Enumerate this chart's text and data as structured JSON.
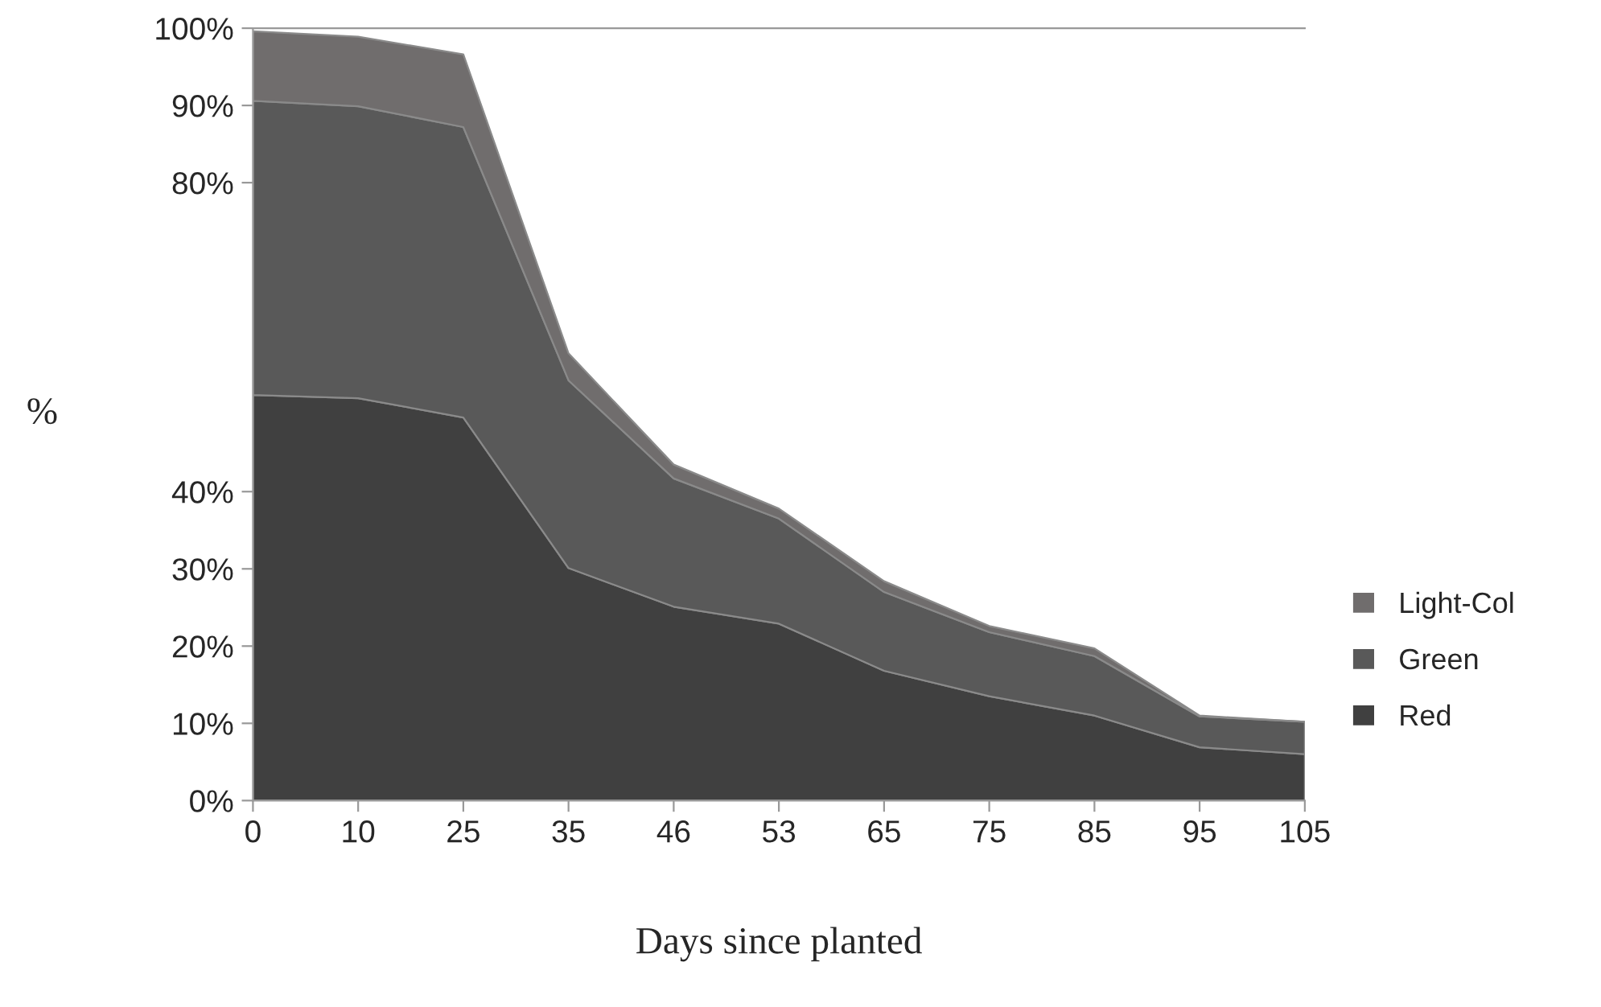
{
  "chart_data": {
    "type": "area",
    "stacked": true,
    "xlabel": "Days since planted",
    "ylabel": "%",
    "categories": [
      "0",
      "10",
      "25",
      "35",
      "46",
      "53",
      "65",
      "75",
      "85",
      "95",
      "105"
    ],
    "series": [
      {
        "name": "Red",
        "color": "#404040",
        "values": [
          52.5,
          52.1,
          49.6,
          30.1,
          25.1,
          22.9,
          16.8,
          13.5,
          11.0,
          6.9,
          6.0
        ]
      },
      {
        "name": "Green",
        "color": "#595959",
        "values": [
          38.1,
          37.8,
          37.6,
          24.3,
          16.6,
          13.6,
          10.2,
          8.3,
          7.7,
          4.0,
          4.2
        ]
      },
      {
        "name": "Light-Col",
        "color": "#706d6d",
        "values": [
          9.0,
          9.0,
          9.4,
          3.5,
          1.8,
          1.3,
          1.4,
          0.8,
          1.0,
          0.1,
          0.0
        ]
      }
    ],
    "ylim": [
      0,
      100
    ],
    "yticks": [
      {
        "value": 0,
        "label": "0%"
      },
      {
        "value": 10,
        "label": "10%"
      },
      {
        "value": 20,
        "label": "20%"
      },
      {
        "value": 30,
        "label": "30%"
      },
      {
        "value": 40,
        "label": "40%"
      },
      {
        "value": 80,
        "label": "80%"
      },
      {
        "value": 90,
        "label": "90%"
      },
      {
        "value": 100,
        "label": "100%"
      }
    ],
    "grid": false,
    "legend": "right"
  }
}
